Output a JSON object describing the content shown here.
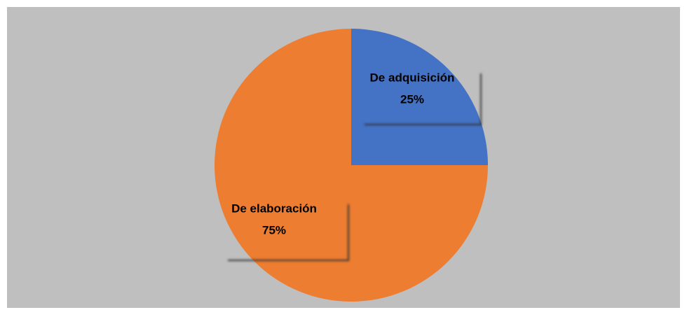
{
  "chart_data": {
    "type": "pie",
    "categories": [
      "De adquisición",
      "De elaboración"
    ],
    "values": [
      25,
      75
    ],
    "value_labels": [
      "25%",
      "75%"
    ],
    "colors": [
      "#4472c4",
      "#ed7d31"
    ]
  }
}
